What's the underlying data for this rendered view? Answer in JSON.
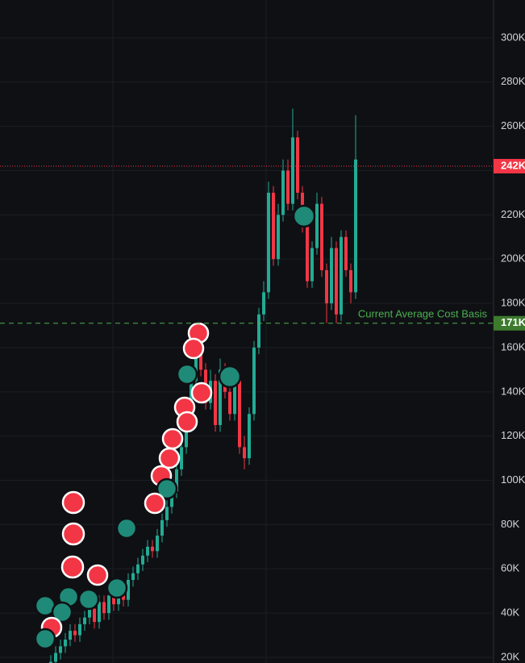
{
  "chart_data": {
    "type": "candlestick",
    "open": [
      16,
      18,
      22,
      25,
      28,
      32,
      30,
      35,
      38,
      42,
      36,
      45,
      40,
      48,
      44,
      50,
      46,
      55,
      58,
      62,
      66,
      70,
      68,
      75,
      82,
      88,
      95,
      105,
      115,
      130,
      145,
      160,
      150,
      135,
      145,
      125,
      150,
      140,
      130,
      145,
      115,
      110,
      130,
      160,
      175,
      185,
      230,
      200,
      220,
      240,
      225,
      255,
      230,
      215,
      190,
      205,
      225,
      195,
      180,
      205,
      175,
      210,
      195,
      185
    ],
    "high": [
      21,
      25,
      28,
      31,
      35,
      35,
      38,
      41,
      45,
      45,
      48,
      48,
      51,
      51,
      53,
      53,
      58,
      61,
      65,
      69,
      73,
      73,
      78,
      85,
      91,
      98,
      108,
      118,
      133,
      148,
      165,
      163,
      153,
      150,
      148,
      155,
      153,
      143,
      148,
      148,
      120,
      133,
      163,
      178,
      190,
      235,
      233,
      225,
      245,
      245,
      268,
      258,
      233,
      218,
      208,
      230,
      228,
      198,
      210,
      208,
      213,
      213,
      198,
      265
    ],
    "low": [
      13,
      15,
      19,
      22,
      25,
      27,
      27,
      32,
      35,
      33,
      33,
      37,
      37,
      41,
      41,
      43,
      43,
      52,
      55,
      59,
      63,
      65,
      65,
      72,
      79,
      85,
      92,
      102,
      112,
      127,
      142,
      147,
      132,
      132,
      122,
      122,
      137,
      127,
      127,
      112,
      105,
      107,
      127,
      157,
      172,
      182,
      197,
      197,
      217,
      222,
      222,
      227,
      212,
      187,
      187,
      202,
      192,
      171,
      177,
      171,
      172,
      192,
      180,
      182
    ],
    "close": [
      18,
      22,
      25,
      28,
      32,
      30,
      35,
      38,
      42,
      36,
      45,
      40,
      48,
      44,
      50,
      46,
      55,
      58,
      62,
      66,
      70,
      68,
      75,
      82,
      88,
      95,
      105,
      115,
      130,
      145,
      160,
      150,
      135,
      145,
      125,
      150,
      140,
      130,
      145,
      115,
      110,
      130,
      160,
      175,
      185,
      230,
      200,
      220,
      240,
      225,
      255,
      230,
      215,
      190,
      205,
      225,
      195,
      180,
      205,
      175,
      210,
      195,
      185,
      245
    ],
    "up_color": "#22ab94",
    "down_color": "#f23645",
    "ylim": [
      17.45,
      317.1
    ],
    "yticks": [
      {
        "value": 20,
        "label": "20K"
      },
      {
        "value": 40,
        "label": "40K"
      },
      {
        "value": 60,
        "label": "60K"
      },
      {
        "value": 80,
        "label": "80K"
      },
      {
        "value": 100,
        "label": "100K"
      },
      {
        "value": 120,
        "label": "120K"
      },
      {
        "value": 140,
        "label": "140K"
      },
      {
        "value": 160,
        "label": "160K"
      },
      {
        "value": 180,
        "label": "180K"
      },
      {
        "value": 200,
        "label": "200K"
      },
      {
        "value": 220,
        "label": "220K"
      },
      {
        "value": 240,
        "label": "240K"
      },
      {
        "value": 260,
        "label": "260K"
      },
      {
        "value": 280,
        "label": "280K"
      },
      {
        "value": 300,
        "label": "300K"
      }
    ],
    "current_price": {
      "value": 242,
      "label": "242K"
    },
    "cost_basis": {
      "value": 171,
      "label": "171K",
      "annotation": "Current Average Cost Basis"
    },
    "grid": true
  }
}
